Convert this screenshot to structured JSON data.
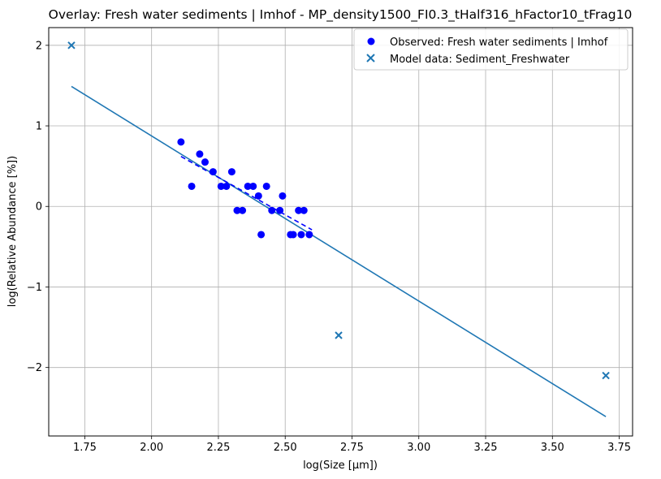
{
  "chart_data": {
    "type": "scatter",
    "title": "Overlay: Fresh water sediments | Imhof - MP_density1500_FI0.3_tHalf316_hFactor10_tFrag10",
    "xlabel": "log(Size [μm])",
    "ylabel": "log(Relative Abundance [%])",
    "xlim": [
      1.615,
      3.8
    ],
    "ylim": [
      -2.85,
      2.22
    ],
    "xticks": [
      1.75,
      2.0,
      2.25,
      2.5,
      2.75,
      3.0,
      3.25,
      3.5,
      3.75
    ],
    "xtick_labels": [
      "1.75",
      "2.00",
      "2.25",
      "2.50",
      "2.75",
      "3.00",
      "3.25",
      "3.50",
      "3.75"
    ],
    "yticks": [
      -2,
      -1,
      0,
      1,
      2
    ],
    "ytick_labels": [
      "−2",
      "−1",
      "0",
      "1",
      "2"
    ],
    "grid": true,
    "legend_position": "top-right",
    "colors": {
      "observed": "#0000ff",
      "model": "#1f77b4"
    },
    "series": [
      {
        "name": "Observed: Fresh water sediments | Imhof",
        "marker": "circle",
        "x": [
          2.11,
          2.15,
          2.18,
          2.2,
          2.23,
          2.26,
          2.28,
          2.3,
          2.32,
          2.34,
          2.36,
          2.38,
          2.4,
          2.41,
          2.43,
          2.45,
          2.48,
          2.49,
          2.52,
          2.53,
          2.55,
          2.56,
          2.57,
          2.59
        ],
        "y": [
          0.8,
          0.25,
          0.65,
          0.55,
          0.43,
          0.25,
          0.25,
          0.43,
          -0.05,
          -0.05,
          0.25,
          0.25,
          0.13,
          -0.35,
          0.25,
          -0.05,
          -0.05,
          0.13,
          -0.35,
          -0.35,
          -0.05,
          -0.35,
          -0.05,
          -0.35
        ]
      },
      {
        "name": "Model data: Sediment_Freshwater",
        "marker": "x",
        "x": [
          1.7,
          2.7,
          3.7
        ],
        "y": [
          2.0,
          -1.6,
          -2.1
        ]
      }
    ],
    "fit_lines": [
      {
        "series": "Model data: Sediment_Freshwater",
        "style": "solid",
        "x": [
          1.7,
          3.7
        ],
        "y": [
          1.49,
          -2.61
        ]
      },
      {
        "series": "Observed: Fresh water sediments | Imhof",
        "style": "dashed",
        "x": [
          2.11,
          2.6
        ],
        "y": [
          0.62,
          -0.29
        ]
      }
    ]
  }
}
